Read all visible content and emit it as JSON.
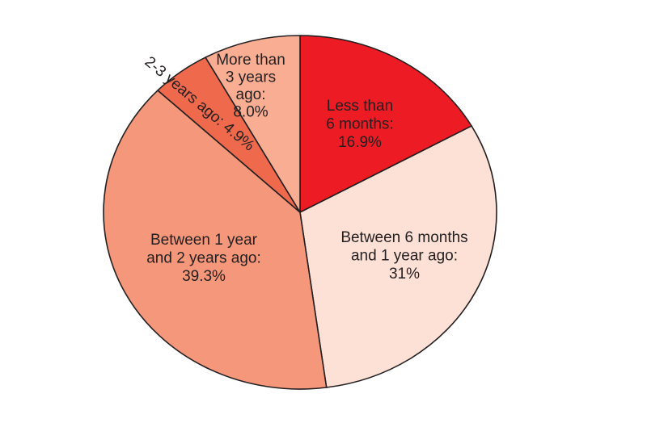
{
  "chart_data": {
    "type": "pie",
    "start_angle_deg": 0,
    "direction": "clockwise",
    "slices": [
      {
        "label": "Less than 6 months",
        "label_lines": [
          "Less than",
          "6 months:",
          "16.9%"
        ],
        "value": 16.9,
        "color": "#ed1c24"
      },
      {
        "label": "Between 6 months and 1 year ago",
        "label_lines": [
          "Between 6 months",
          "and 1 year ago:",
          "31%"
        ],
        "value": 31,
        "color": "#fde1d6"
      },
      {
        "label": "Between 1 year and 2 years ago",
        "label_lines": [
          "Between 1 year",
          "and 2 years ago:",
          "39.3%"
        ],
        "value": 39.3,
        "color": "#f4977a"
      },
      {
        "label": "2-3 years ago",
        "label_lines": [
          "2-3 years ago: 4.9%"
        ],
        "value": 4.9,
        "color": "#ef6a4d"
      },
      {
        "label": "More than 3 years ago",
        "label_lines": [
          "More than",
          "3 years",
          "ago:",
          "8.0%"
        ],
        "value": 8.0,
        "color": "#f9ae94"
      }
    ],
    "outline_color": "#231f20"
  }
}
